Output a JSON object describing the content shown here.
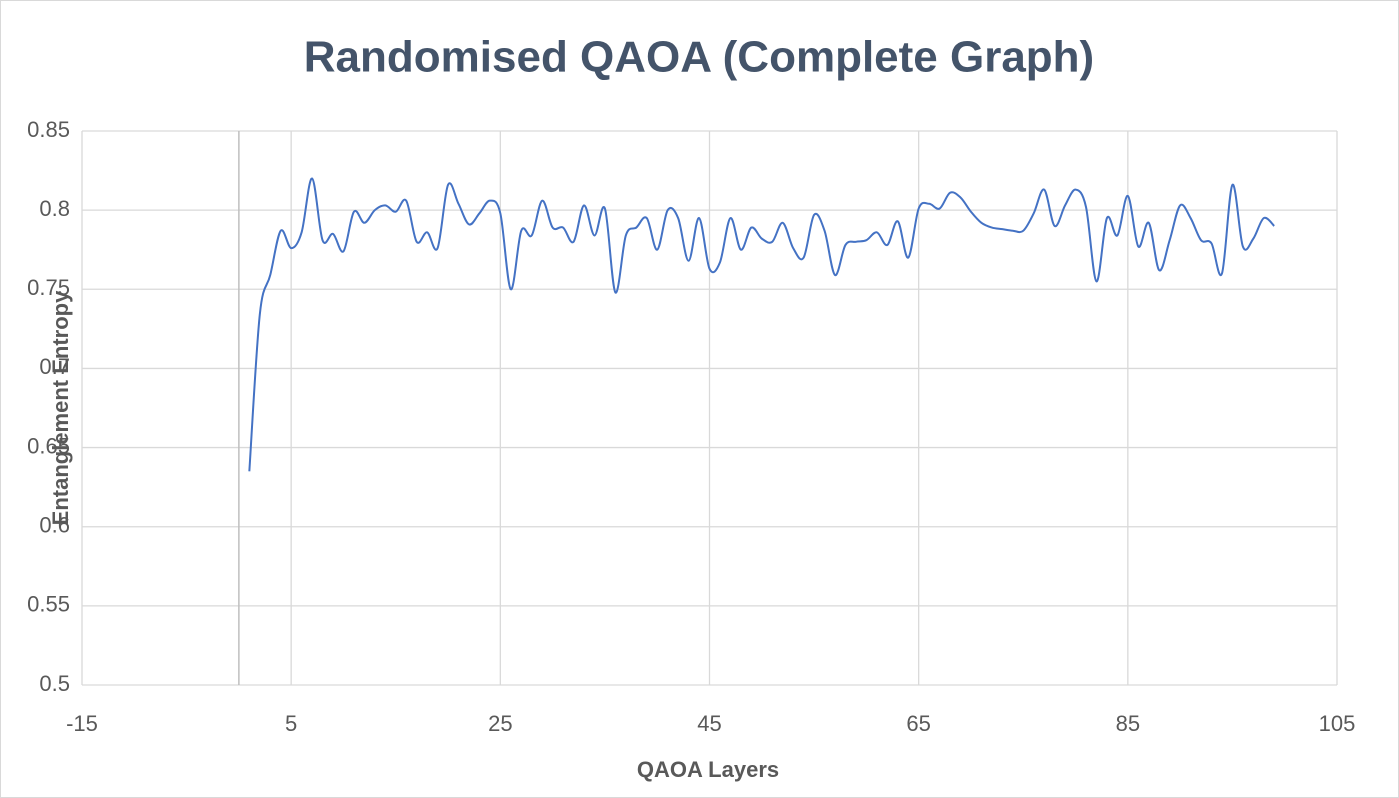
{
  "chart_data": {
    "type": "line",
    "title": "Randomised QAOA (Complete Graph)",
    "xlabel": "QAOA Layers",
    "ylabel": "Entanglement Entropy",
    "x": [
      1,
      2,
      3,
      4,
      5,
      6,
      7,
      8,
      9,
      10,
      11,
      12,
      13,
      14,
      15,
      16,
      17,
      18,
      19,
      20,
      21,
      22,
      23,
      24,
      25,
      26,
      27,
      28,
      29,
      30,
      31,
      32,
      33,
      34,
      35,
      36,
      37,
      38,
      39,
      40,
      41,
      42,
      43,
      44,
      45,
      46,
      47,
      48,
      49,
      50,
      51,
      52,
      53,
      54,
      55,
      56,
      57,
      58,
      59,
      60,
      61,
      62,
      63,
      64,
      65,
      66,
      67,
      68,
      69,
      70,
      71,
      72,
      73,
      74,
      75,
      76,
      77,
      78,
      79,
      80,
      81,
      82,
      83,
      84,
      85,
      86,
      87,
      88,
      89,
      90,
      91,
      92,
      93,
      94,
      95,
      96,
      97,
      98,
      99
    ],
    "series": [
      {
        "name": "Entanglement Entropy",
        "color": "#4472c4",
        "values": [
          0.635,
          0.734,
          0.759,
          0.787,
          0.776,
          0.786,
          0.82,
          0.781,
          0.785,
          0.774,
          0.799,
          0.792,
          0.8,
          0.803,
          0.799,
          0.806,
          0.78,
          0.786,
          0.776,
          0.816,
          0.804,
          0.791,
          0.798,
          0.806,
          0.798,
          0.75,
          0.787,
          0.784,
          0.806,
          0.789,
          0.789,
          0.78,
          0.803,
          0.784,
          0.801,
          0.748,
          0.784,
          0.789,
          0.795,
          0.775,
          0.8,
          0.795,
          0.768,
          0.795,
          0.763,
          0.767,
          0.795,
          0.775,
          0.789,
          0.782,
          0.78,
          0.792,
          0.776,
          0.77,
          0.797,
          0.787,
          0.759,
          0.778,
          0.78,
          0.781,
          0.786,
          0.778,
          0.793,
          0.77,
          0.801,
          0.804,
          0.801,
          0.811,
          0.808,
          0.799,
          0.792,
          0.789,
          0.788,
          0.787,
          0.787,
          0.798,
          0.813,
          0.79,
          0.803,
          0.813,
          0.802,
          0.755,
          0.795,
          0.784,
          0.809,
          0.777,
          0.792,
          0.762,
          0.781,
          0.803,
          0.795,
          0.781,
          0.779,
          0.76,
          0.816,
          0.777,
          0.782,
          0.795,
          0.79
        ]
      }
    ],
    "xlim": [
      -15,
      105
    ],
    "xticks": [
      -15,
      5,
      25,
      45,
      65,
      85,
      105
    ],
    "ylim": [
      0.5,
      0.85
    ],
    "yticks": [
      0.5,
      0.55,
      0.6,
      0.65,
      0.7,
      0.75,
      0.8,
      0.85
    ],
    "grid": true,
    "smooth": true
  }
}
